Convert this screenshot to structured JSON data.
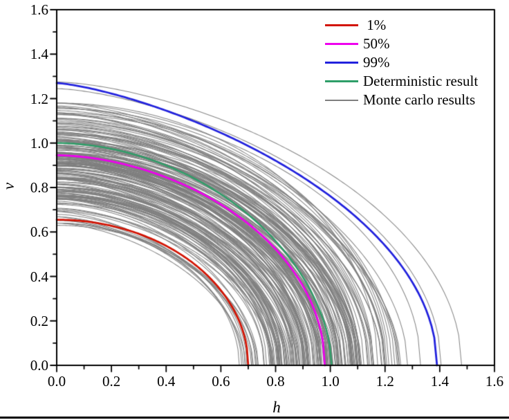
{
  "figure": {
    "background": "#ffffff",
    "frame_color": "#000000",
    "has_bottom_rule": true
  },
  "chart_data": {
    "type": "line",
    "title": "",
    "xlabel": "h",
    "ylabel": "v",
    "xlim": [
      0.0,
      1.6
    ],
    "ylim": [
      0.0,
      1.6
    ],
    "major_tick_step": 0.2,
    "minor_tick_step": 0.1,
    "x_tick_labels": [
      "0.0",
      "0.2",
      "0.4",
      "0.6",
      "0.8",
      "1.0",
      "1.2",
      "1.4",
      "1.6"
    ],
    "y_tick_labels": [
      "0.0",
      "0.2",
      "0.4",
      "0.6",
      "0.8",
      "1.0",
      "1.2",
      "1.4",
      "1.6"
    ],
    "grid": false,
    "legend_position": "top-right-inside",
    "series": [
      {
        "name": "1%",
        "color": "#d21404",
        "v_intercept": 0.655,
        "h_intercept": 0.7,
        "exp_h": 2.0,
        "exp_v": 2.0,
        "line_width": 2.8
      },
      {
        "name": "50%",
        "color": "#ee00ee",
        "v_intercept": 0.945,
        "h_intercept": 0.98,
        "exp_h": 1.8,
        "exp_v": 2.0,
        "line_width": 2.8
      },
      {
        "name": "99%",
        "color": "#2222dd",
        "v_intercept": 1.27,
        "h_intercept": 1.39,
        "exp_h": 1.35,
        "exp_v": 2.0,
        "line_width": 2.8
      },
      {
        "name": "Deterministic result",
        "color": "#2e9e68",
        "v_intercept": 1.0,
        "h_intercept": 1.005,
        "exp_h": 1.9,
        "exp_v": 1.8,
        "line_width": 2.4
      }
    ],
    "monte_carlo": {
      "name": "Monte carlo results",
      "color": "#7e7e7e",
      "opacity": 0.95,
      "line_width": 1.05,
      "count": 200,
      "seed": 123457,
      "v_intercept_mean": 0.9,
      "v_intercept_sd": 0.125,
      "v_intercept_min": 0.64,
      "v_intercept_max": 1.18,
      "h_over_v_ratio_mean": 1.065,
      "h_over_v_ratio_sd": 0.035,
      "h_over_v_ratio_min": 0.99,
      "h_over_v_ratio_max": 1.15,
      "exp_h_range": [
        1.55,
        2.05
      ],
      "exp_v_range": [
        1.8,
        2.05
      ],
      "outliers": [
        {
          "v_intercept": 1.275,
          "h_intercept": 1.48,
          "exp_h": 1.55,
          "exp_v": 2.0
        },
        {
          "v_intercept": 1.245,
          "h_intercept": 1.405,
          "exp_h": 1.5,
          "exp_v": 2.0
        },
        {
          "v_intercept": 1.18,
          "h_intercept": 1.33,
          "exp_h": 1.7,
          "exp_v": 2.0
        },
        {
          "v_intercept": 0.63,
          "h_intercept": 0.695,
          "exp_h": 2.0,
          "exp_v": 2.0
        }
      ]
    },
    "legend": {
      "items": [
        {
          "label": " 1%",
          "color": "#d21404",
          "thickness": 3
        },
        {
          "label": "50%",
          "color": "#ee00ee",
          "thickness": 3
        },
        {
          "label": "99%",
          "color": "#2222dd",
          "thickness": 3
        },
        {
          "label": "Deterministic result",
          "color": "#2e9e68",
          "thickness": 3
        },
        {
          "label": "Monte carlo results",
          "color": "#7e7e7e",
          "thickness": 2
        }
      ]
    }
  }
}
